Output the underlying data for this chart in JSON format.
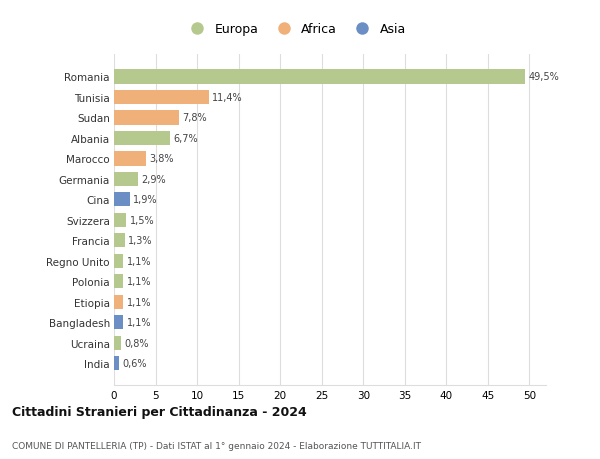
{
  "countries": [
    "Romania",
    "Tunisia",
    "Sudan",
    "Albania",
    "Marocco",
    "Germania",
    "Cina",
    "Svizzera",
    "Francia",
    "Regno Unito",
    "Polonia",
    "Etiopia",
    "Bangladesh",
    "Ucraina",
    "India"
  ],
  "values": [
    49.5,
    11.4,
    7.8,
    6.7,
    3.8,
    2.9,
    1.9,
    1.5,
    1.3,
    1.1,
    1.1,
    1.1,
    1.1,
    0.8,
    0.6
  ],
  "labels": [
    "49,5%",
    "11,4%",
    "7,8%",
    "6,7%",
    "3,8%",
    "2,9%",
    "1,9%",
    "1,5%",
    "1,3%",
    "1,1%",
    "1,1%",
    "1,1%",
    "1,1%",
    "0,8%",
    "0,6%"
  ],
  "continents": [
    "Europa",
    "Africa",
    "Africa",
    "Europa",
    "Africa",
    "Europa",
    "Asia",
    "Europa",
    "Europa",
    "Europa",
    "Europa",
    "Africa",
    "Asia",
    "Europa",
    "Asia"
  ],
  "colors": {
    "Europa": "#b5c98e",
    "Africa": "#f0b07a",
    "Asia": "#6b8fc4"
  },
  "xlim": [
    0,
    52
  ],
  "xticks": [
    0,
    5,
    10,
    15,
    20,
    25,
    30,
    35,
    40,
    45,
    50
  ],
  "title": "Cittadini Stranieri per Cittadinanza - 2024",
  "subtitle": "COMUNE DI PANTELLERIA (TP) - Dati ISTAT al 1° gennaio 2024 - Elaborazione TUTTITALIA.IT",
  "background_color": "#ffffff",
  "grid_color": "#dddddd",
  "bar_height": 0.7,
  "legend_labels": [
    "Europa",
    "Africa",
    "Asia"
  ],
  "legend_colors": [
    "#b5c98e",
    "#f0b07a",
    "#6b8fc4"
  ]
}
